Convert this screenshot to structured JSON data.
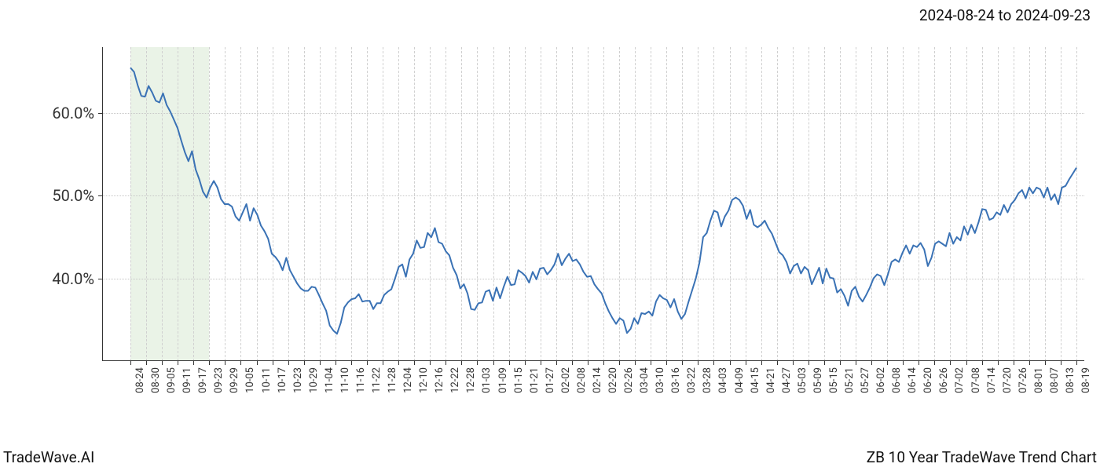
{
  "header": {
    "date_range": "2024-08-24 to 2024-09-23"
  },
  "footer": {
    "left": "TradeWave.AI",
    "right": "ZB 10 Year TradeWave Trend Chart"
  },
  "chart": {
    "type": "line",
    "background_color": "#ffffff",
    "grid_color": "#c7c7c7",
    "vgrid_color": "#d0d0d0",
    "axis_color": "#333333",
    "line_color": "#3a72b5",
    "line_width": 2,
    "highlight_band": {
      "start_index": 0,
      "end_index": 5,
      "color": "#d9ead3",
      "opacity": 0.55
    },
    "ylim": [
      30,
      68
    ],
    "yticks": [
      40,
      50,
      60
    ],
    "ytick_labels": [
      "40.0%",
      "50.0%",
      "60.0%"
    ],
    "ytick_fontsize": 20,
    "xtick_fontsize": 13,
    "xtick_rotation": -90,
    "x_labels": [
      "08-24",
      "08-30",
      "09-05",
      "09-11",
      "09-17",
      "09-23",
      "09-29",
      "10-05",
      "10-11",
      "10-17",
      "10-23",
      "10-29",
      "11-04",
      "11-10",
      "11-16",
      "11-22",
      "11-28",
      "12-04",
      "12-10",
      "12-16",
      "12-22",
      "12-28",
      "01-03",
      "01-09",
      "01-15",
      "01-21",
      "01-27",
      "02-02",
      "02-08",
      "02-14",
      "02-20",
      "02-26",
      "03-04",
      "03-10",
      "03-16",
      "03-22",
      "03-28",
      "04-03",
      "04-09",
      "04-15",
      "04-21",
      "04-27",
      "05-03",
      "05-09",
      "05-15",
      "05-21",
      "05-27",
      "06-02",
      "06-08",
      "06-14",
      "06-20",
      "06-26",
      "07-02",
      "07-08",
      "07-14",
      "07-20",
      "07-26",
      "08-01",
      "08-07",
      "08-13",
      "08-19"
    ],
    "values": [
      65.5,
      65.0,
      63.4,
      62.1,
      62.0,
      63.3,
      62.5,
      61.5,
      61.3,
      62.4,
      61.0,
      60.2,
      59.2,
      58.2,
      56.7,
      55.3,
      54.2,
      55.4,
      53.2,
      52.0,
      50.5,
      49.8,
      51.0,
      51.8,
      51.0,
      49.6,
      49.0,
      49.0,
      48.7,
      47.5,
      47.0,
      48.0,
      49.0,
      47.0,
      48.5,
      47.7,
      46.4,
      45.7,
      44.8,
      43.0,
      42.6,
      42.0,
      41.0,
      42.5,
      41.0,
      40.2,
      39.4,
      38.8,
      38.5,
      38.5,
      39.0,
      38.9,
      38.0,
      37.0,
      36.1,
      34.3,
      33.7,
      33.3,
      34.6,
      36.5,
      37.1,
      37.5,
      37.6,
      38.1,
      37.2,
      37.3,
      37.3,
      36.3,
      37.0,
      37.0,
      38.0,
      38.4,
      38.7,
      40.0,
      41.4,
      41.7,
      40.2,
      42.3,
      43.0,
      44.6,
      43.7,
      43.8,
      45.5,
      45.0,
      46.1,
      44.4,
      44.2,
      43.3,
      42.8,
      41.3,
      40.4,
      38.8,
      39.3,
      38.2,
      36.3,
      36.2,
      37.0,
      37.1,
      38.4,
      38.6,
      37.3,
      38.9,
      37.6,
      39.0,
      40.2,
      39.2,
      39.3,
      41.0,
      40.7,
      40.3,
      39.5,
      40.8,
      39.9,
      41.2,
      41.3,
      40.5,
      41.0,
      41.7,
      43.0,
      41.6,
      42.4,
      43.0,
      42.1,
      42.3,
      41.7,
      40.8,
      40.2,
      40.3,
      39.3,
      38.7,
      38.2,
      37.0,
      36.0,
      35.2,
      34.5,
      35.2,
      34.9,
      33.4,
      33.9,
      35.2,
      34.5,
      35.8,
      35.7,
      36.0,
      35.5,
      37.2,
      38.0,
      37.6,
      37.4,
      36.5,
      37.5,
      36.0,
      35.1,
      35.7,
      37.2,
      38.6,
      40.0,
      41.9,
      45.0,
      45.5,
      47.0,
      48.2,
      48.0,
      46.3,
      47.5,
      48.2,
      49.5,
      49.8,
      49.5,
      48.8,
      47.2,
      48.3,
      46.5,
      46.2,
      46.5,
      47.0,
      46.1,
      45.4,
      44.3,
      43.2,
      42.8,
      42.0,
      40.6,
      41.5,
      41.8,
      40.6,
      41.4,
      41.0,
      39.3,
      40.3,
      41.3,
      39.4,
      41.2,
      40.1,
      40.0,
      38.3,
      38.7,
      37.9,
      36.7,
      38.5,
      39.0,
      37.8,
      37.2,
      38.0,
      38.9,
      40.0,
      40.5,
      40.3,
      39.2,
      40.5,
      42.0,
      42.3,
      42.0,
      43.1,
      44.0,
      43.0,
      44.0,
      43.8,
      44.3,
      43.5,
      41.5,
      42.5,
      44.2,
      44.5,
      44.2,
      43.9,
      45.5,
      44.2,
      45.0,
      44.6,
      46.3,
      45.3,
      46.5,
      45.5,
      46.8,
      48.4,
      48.3,
      47.1,
      47.3,
      48.0,
      47.7,
      48.9,
      48.0,
      49.0,
      49.5,
      50.3,
      50.7,
      49.7,
      51.0,
      50.3,
      51.0,
      50.8,
      49.8,
      51.0,
      49.5,
      50.2,
      49.0,
      51.0,
      51.2,
      52.0,
      52.7,
      53.4
    ]
  }
}
